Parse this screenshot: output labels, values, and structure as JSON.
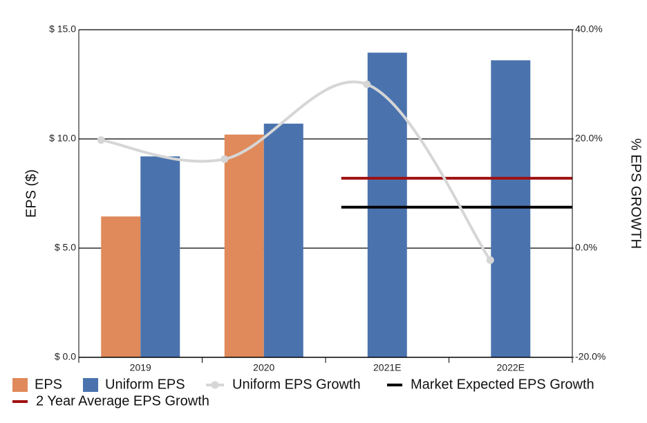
{
  "chart_data": {
    "type": "bar",
    "categories": [
      "2019",
      "2020",
      "2021E",
      "2022E"
    ],
    "left_axis": {
      "label": "EPS ($)",
      "range": [
        0,
        15
      ],
      "ticks": [
        {
          "value": 0,
          "label": "$ 0.0"
        },
        {
          "value": 5,
          "label": "$ 5.0"
        },
        {
          "value": 10,
          "label": "$ 10.0"
        },
        {
          "value": 15,
          "label": "$ 15.0"
        }
      ]
    },
    "right_axis": {
      "label": "% EPS GROWTH",
      "range": [
        -20,
        40
      ],
      "ticks": [
        {
          "value": -20,
          "label": "-20.0%"
        },
        {
          "value": 0,
          "label": "0.0%"
        },
        {
          "value": 20,
          "label": "20.0%"
        },
        {
          "value": 40,
          "label": "40.0%"
        }
      ]
    },
    "series": [
      {
        "name": "EPS",
        "kind": "bar",
        "axis": "left",
        "color": "#E0895A",
        "values": [
          6.45,
          10.2,
          null,
          null
        ]
      },
      {
        "name": "Uniform EPS",
        "kind": "bar",
        "axis": "left",
        "color": "#4A73AE",
        "values": [
          9.2,
          10.7,
          13.95,
          13.6
        ]
      },
      {
        "name": "Uniform EPS Growth",
        "kind": "line",
        "axis": "right",
        "color": "#D6D6D6",
        "values": [
          19.8,
          16.3,
          30.0,
          -2.2
        ]
      },
      {
        "name": "Market Expected EPS Growth",
        "kind": "hline",
        "axis": "right",
        "color": "#000000",
        "value": 7.5,
        "from_category": "2021E"
      },
      {
        "name": "2 Year Average EPS Growth",
        "kind": "hline",
        "axis": "right",
        "color": "#A01010",
        "value": 12.8,
        "from_category": "2021E"
      }
    ],
    "grid": true,
    "legend_position": "bottom"
  }
}
